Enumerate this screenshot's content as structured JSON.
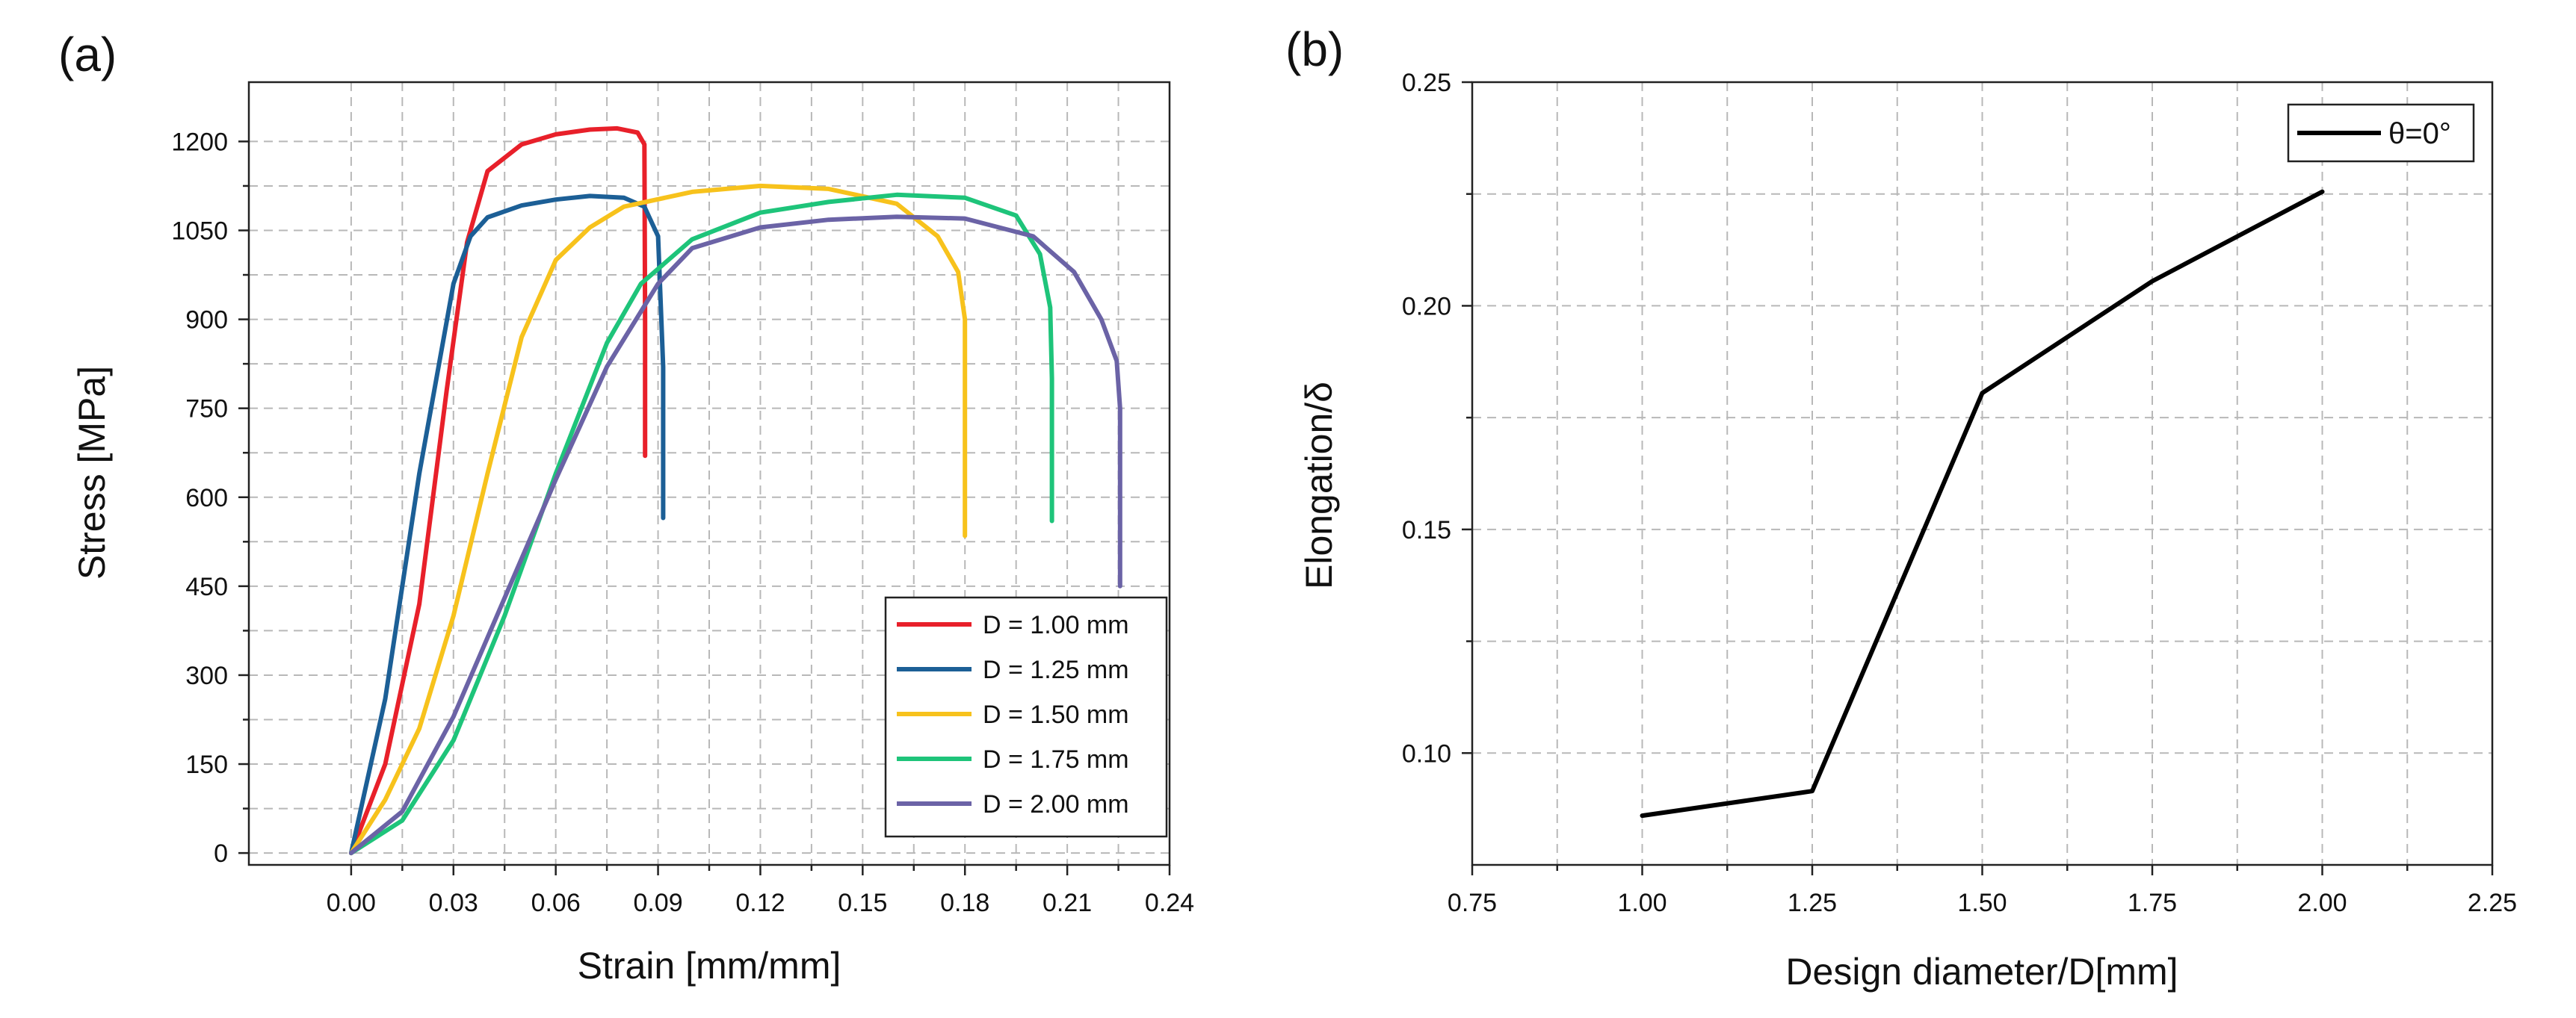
{
  "chart_data": [
    {
      "panel_label": "(a)",
      "type": "line",
      "title": "",
      "xlabel": "Strain [mm/mm]",
      "ylabel": "Stress [MPa]",
      "xlim": [
        -0.03,
        0.24
      ],
      "ylim": [
        -20,
        1300
      ],
      "x_ticks": [
        "0.00",
        "0.03",
        "0.06",
        "0.09",
        "0.12",
        "0.15",
        "0.18",
        "0.21",
        "0.24"
      ],
      "y_ticks": [
        "0",
        "150",
        "300",
        "450",
        "600",
        "750",
        "900",
        "1050",
        "1200"
      ],
      "grid": true,
      "legend_position": "bottom-right",
      "series": [
        {
          "name": "D = 1.00 mm",
          "color": "#e8202a",
          "x": [
            0,
            0.01,
            0.02,
            0.028,
            0.034,
            0.04,
            0.05,
            0.06,
            0.07,
            0.078,
            0.084,
            0.086,
            0.0862,
            0.0862
          ],
          "y": [
            0,
            150,
            420,
            780,
            1030,
            1150,
            1195,
            1212,
            1220,
            1222,
            1215,
            1195,
            900,
            670
          ]
        },
        {
          "name": "D = 1.25 mm",
          "color": "#1c5f96",
          "x": [
            0,
            0.01,
            0.02,
            0.03,
            0.035,
            0.04,
            0.05,
            0.06,
            0.07,
            0.08,
            0.086,
            0.09,
            0.0915,
            0.0915
          ],
          "y": [
            0,
            260,
            640,
            960,
            1040,
            1072,
            1092,
            1102,
            1108,
            1105,
            1090,
            1040,
            820,
            565
          ]
        },
        {
          "name": "D = 1.50 mm",
          "color": "#f7c21c",
          "x": [
            0,
            0.01,
            0.02,
            0.03,
            0.04,
            0.05,
            0.06,
            0.07,
            0.08,
            0.1,
            0.12,
            0.14,
            0.16,
            0.172,
            0.178,
            0.18,
            0.18
          ],
          "y": [
            0,
            90,
            210,
            400,
            640,
            870,
            1000,
            1055,
            1090,
            1115,
            1125,
            1120,
            1095,
            1040,
            980,
            900,
            535
          ]
        },
        {
          "name": "D = 1.75 mm",
          "color": "#1ec47a",
          "x": [
            0,
            0.015,
            0.03,
            0.045,
            0.06,
            0.075,
            0.085,
            0.1,
            0.12,
            0.14,
            0.16,
            0.18,
            0.195,
            0.202,
            0.205,
            0.2055,
            0.2055
          ],
          "y": [
            0,
            55,
            190,
            400,
            640,
            860,
            960,
            1035,
            1080,
            1098,
            1110,
            1105,
            1075,
            1010,
            920,
            800,
            560
          ]
        },
        {
          "name": "D = 2.00 mm",
          "color": "#6b63a6",
          "x": [
            0,
            0.015,
            0.03,
            0.045,
            0.06,
            0.075,
            0.09,
            0.1,
            0.12,
            0.14,
            0.16,
            0.18,
            0.2,
            0.212,
            0.22,
            0.2245,
            0.2255,
            0.2255
          ],
          "y": [
            0,
            70,
            230,
            430,
            630,
            820,
            960,
            1020,
            1055,
            1068,
            1073,
            1070,
            1040,
            980,
            900,
            830,
            750,
            450
          ]
        }
      ]
    },
    {
      "panel_label": "(b)",
      "type": "line",
      "title": "",
      "xlabel": "Design diameter/D[mm]",
      "ylabel": "Elongation/δ",
      "xlim": [
        0.75,
        2.25
      ],
      "ylim": [
        0.075,
        0.25
      ],
      "x_ticks": [
        "0.75",
        "1.00",
        "1.25",
        "1.50",
        "1.75",
        "2.00",
        "2.25"
      ],
      "y_ticks": [
        "0.10",
        "0.15",
        "0.20",
        "0.25"
      ],
      "grid": true,
      "legend_position": "top-right",
      "series": [
        {
          "name": "θ=0°",
          "color": "#000000",
          "x": [
            1.0,
            1.25,
            1.5,
            1.75,
            2.0
          ],
          "y": [
            0.086,
            0.0915,
            0.1805,
            0.2055,
            0.2255
          ]
        }
      ]
    }
  ]
}
